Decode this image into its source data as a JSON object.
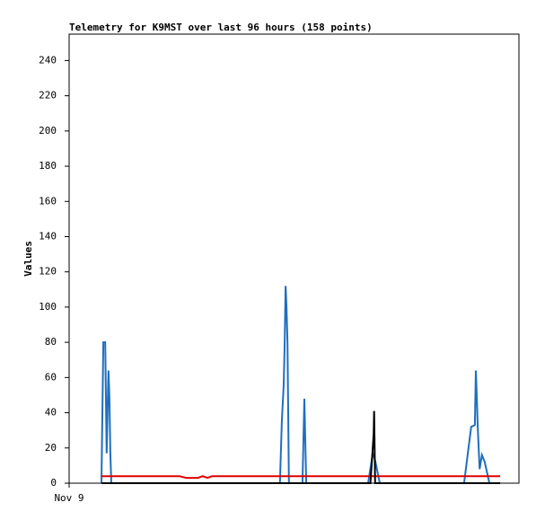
{
  "chart_data": {
    "type": "line",
    "title": "Telemetry for K9MST over last 96 hours (158 points)",
    "y_label": "Values",
    "xlim": [
      0,
      96
    ],
    "xticks": [
      {
        "value": 0,
        "label": "Nov 9"
      }
    ],
    "ylim": [
      0,
      255
    ],
    "yticks": [
      0,
      20,
      40,
      60,
      80,
      100,
      120,
      140,
      160,
      180,
      200,
      220,
      240
    ],
    "grid": false,
    "series": [
      {
        "color": "#1f6fbf",
        "x": [
          6.9,
          7.3,
          7.7,
          7.9,
          8.0,
          8.4,
          8.6,
          8.8,
          9.0,
          45.0,
          45.4,
          45.8,
          46.0,
          46.2,
          46.4,
          46.6,
          46.9,
          49.8,
          50.2,
          50.4,
          50.6,
          63.8,
          64.8,
          65.3,
          66.3,
          84.3,
          85.8,
          86.6,
          86.8,
          87.0,
          87.2,
          87.6,
          88.1,
          88.7,
          89.7
        ],
        "values": [
          0,
          80,
          80,
          40,
          17,
          64,
          48,
          17,
          0,
          0,
          35,
          56,
          80,
          112,
          100,
          80,
          0,
          0,
          48,
          25,
          0,
          0,
          17,
          13,
          0,
          0,
          32,
          33,
          64,
          50,
          32,
          8,
          16,
          12,
          0
        ]
      },
      {
        "color": "#e00000",
        "x": [
          6.9,
          23.5,
          25.0,
          27.5,
          28.5,
          29.5,
          30.5,
          92.0
        ],
        "values": [
          4,
          4,
          3,
          3,
          4,
          3,
          4,
          4
        ]
      },
      {
        "color": "#000000",
        "x": [
          6.9,
          64.3,
          65.0,
          65.1,
          65.3,
          92.0
        ],
        "values": [
          0,
          0,
          28,
          41,
          0,
          0
        ]
      }
    ]
  }
}
